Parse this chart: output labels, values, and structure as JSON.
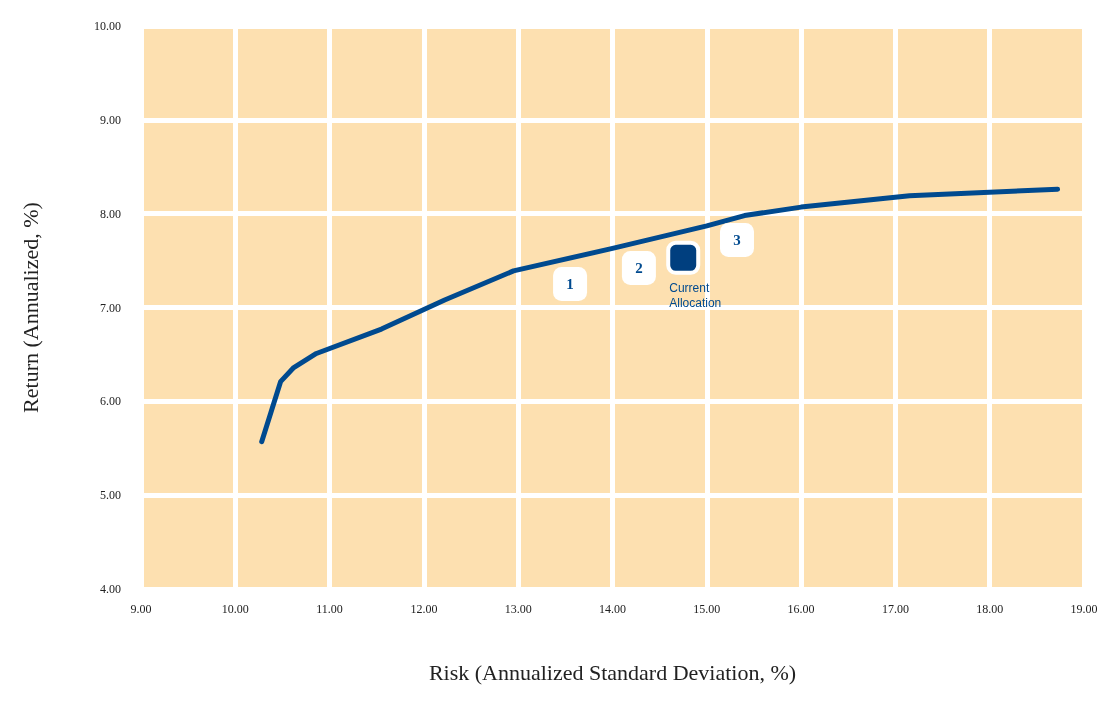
{
  "chart_data": {
    "type": "line",
    "xlabel": "Risk (Annualized Standard Deviation, %)",
    "ylabel": "Return (Annualized, %)",
    "xlim": [
      9,
      19
    ],
    "ylim": [
      4,
      10
    ],
    "xticks": [
      {
        "value": 9,
        "label": "9.00"
      },
      {
        "value": 10,
        "label": "10.00"
      },
      {
        "value": 11,
        "label": "11.00"
      },
      {
        "value": 12,
        "label": "12.00"
      },
      {
        "value": 13,
        "label": "13.00"
      },
      {
        "value": 14,
        "label": "14.00"
      },
      {
        "value": 15,
        "label": "15.00"
      },
      {
        "value": 16,
        "label": "16.00"
      },
      {
        "value": 17,
        "label": "17.00"
      },
      {
        "value": 18,
        "label": "18.00"
      },
      {
        "value": 19,
        "label": "19.00"
      }
    ],
    "yticks": [
      {
        "value": 4,
        "label": "4.00"
      },
      {
        "value": 5,
        "label": "5.00"
      },
      {
        "value": 6,
        "label": "6.00"
      },
      {
        "value": 7,
        "label": "7.00"
      },
      {
        "value": 8,
        "label": "8.00"
      },
      {
        "value": 9,
        "label": "9.00"
      },
      {
        "value": 10,
        "label": "10.00"
      }
    ],
    "annotations": [
      {
        "text": "1",
        "x": 13.55,
        "y": 7.25
      },
      {
        "text": "2",
        "x": 14.28,
        "y": 7.42
      },
      {
        "text": "3",
        "x": 15.32,
        "y": 7.72
      }
    ],
    "grid": true,
    "legend": false,
    "marker": "none",
    "line_style": "solid",
    "series": [
      {
        "color": "#004a8f",
        "x": [
          10.28,
          10.38,
          10.48,
          10.62,
          10.86,
          11.55,
          12.22,
          12.95,
          14.0,
          15.0,
          15.4,
          16.0,
          17.15,
          18.72
        ],
        "values": [
          5.57,
          5.89,
          6.21,
          6.36,
          6.51,
          6.77,
          7.08,
          7.39,
          7.63,
          7.87,
          7.98,
          8.07,
          8.19,
          8.26
        ]
      },
      {
        "type": "scatter",
        "marker": "square",
        "name": "Current Allocation",
        "color": "#003f7f",
        "x": [
          14.75
        ],
        "values": [
          7.53
        ]
      }
    ]
  }
}
